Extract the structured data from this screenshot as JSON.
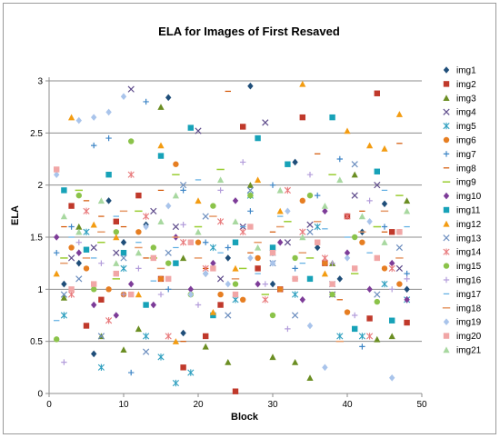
{
  "chart_data": {
    "type": "scatter",
    "title": "ELA for Images of First Resaved",
    "xlabel": "Block",
    "ylabel": "ELA",
    "xlim": [
      0,
      50
    ],
    "ylim": [
      0,
      3
    ],
    "xticks": [
      0,
      10,
      20,
      30,
      40,
      50
    ],
    "yticks": [
      0,
      0.5,
      1,
      1.5,
      2,
      2.5,
      3
    ],
    "ytick_labels": [
      "0",
      "0.5",
      "1",
      "1.5",
      "2",
      "2.5",
      "3"
    ],
    "grid": "horizontal",
    "legend_position": "right",
    "series": [
      {
        "name": "img1",
        "color": "#1F4E79",
        "marker": "diamond",
        "x": [
          2,
          4,
          6,
          8,
          10,
          13,
          16,
          18,
          21,
          24,
          27,
          30,
          33,
          36,
          39,
          42,
          45,
          48
        ],
        "y": [
          1.05,
          1.25,
          0.38,
          1.85,
          1.45,
          1.62,
          2.84,
          0.58,
          1.15,
          1.3,
          2.95,
          1.05,
          2.22,
          1.4,
          1.1,
          1.55,
          1.82,
          1.0
        ]
      },
      {
        "name": "img2",
        "color": "#C0392B",
        "marker": "square",
        "x": [
          3,
          5,
          7,
          9,
          12,
          15,
          18,
          21,
          23,
          25,
          26,
          28,
          31,
          34,
          37,
          40,
          43,
          44,
          46,
          48
        ],
        "y": [
          1.8,
          0.65,
          0.9,
          1.65,
          1.9,
          1.1,
          0.25,
          0.55,
          0.85,
          0.02,
          2.56,
          1.2,
          1.0,
          2.65,
          1.25,
          1.7,
          0.72,
          2.88,
          1.55,
          0.68
        ]
      },
      {
        "name": "img3",
        "color": "#6B8E23",
        "marker": "triangle",
        "x": [
          2,
          4,
          7,
          10,
          12,
          15,
          18,
          21,
          24,
          27,
          30,
          33,
          35,
          38,
          41,
          44,
          46,
          48
        ],
        "y": [
          0.92,
          1.6,
          0.55,
          0.42,
          0.62,
          2.75,
          1.3,
          0.45,
          0.3,
          2.0,
          0.35,
          0.3,
          0.15,
          1.25,
          2.1,
          0.52,
          0.55,
          1.85
        ]
      },
      {
        "name": "img4",
        "color": "#5E4B8B",
        "marker": "x",
        "x": [
          3,
          6,
          9,
          11,
          14,
          17,
          20,
          23,
          26,
          29,
          32,
          35,
          38,
          41,
          44,
          47
        ],
        "y": [
          1.3,
          1.4,
          1.35,
          2.92,
          1.75,
          1.6,
          2.52,
          1.1,
          1.6,
          2.6,
          1.45,
          1.62,
          0.95,
          1.9,
          2.0,
          1.2
        ]
      },
      {
        "name": "img5",
        "color": "#2E9FBF",
        "marker": "star",
        "x": [
          2,
          5,
          7,
          10,
          13,
          15,
          17,
          19,
          22,
          25,
          27,
          30,
          33,
          36,
          39,
          42,
          45,
          48
        ],
        "y": [
          0.75,
          1.55,
          0.25,
          1.2,
          0.55,
          0.35,
          0.1,
          0.2,
          1.4,
          0.9,
          1.9,
          1.35,
          0.95,
          1.6,
          0.55,
          0.55,
          1.05,
          0.9
        ]
      },
      {
        "name": "img6",
        "color": "#E67E22",
        "marker": "circle",
        "x": [
          3,
          5,
          8,
          10,
          12,
          15,
          17,
          20,
          23,
          26,
          28,
          31,
          34,
          37,
          40,
          42,
          45,
          47
        ],
        "y": [
          1.4,
          1.2,
          1.0,
          0.95,
          1.55,
          1.1,
          2.2,
          1.45,
          0.95,
          0.9,
          1.3,
          1.0,
          1.85,
          1.25,
          0.78,
          1.45,
          1.2,
          1.05
        ]
      },
      {
        "name": "img7",
        "color": "#3D85C6",
        "marker": "plus",
        "x": [
          1,
          3,
          6,
          8,
          11,
          13,
          16,
          18,
          21,
          24,
          27,
          30,
          33,
          36,
          39,
          42,
          45,
          48
        ],
        "y": [
          1.35,
          1.6,
          2.38,
          2.45,
          0.2,
          2.8,
          1.0,
          1.95,
          1.45,
          1.4,
          1.75,
          2.0,
          1.2,
          1.9,
          2.25,
          0.45,
          1.6,
          1.15
        ]
      },
      {
        "name": "img8",
        "color": "#D35400",
        "marker": "dash",
        "x": [
          2,
          5,
          7,
          10,
          13,
          15,
          18,
          21,
          24,
          27,
          30,
          33,
          36,
          39,
          42,
          45,
          47
        ],
        "y": [
          1.6,
          1.85,
          1.7,
          1.6,
          1.3,
          1.95,
          0.5,
          1.2,
          2.9,
          1.35,
          1.55,
          1.1,
          2.3,
          0.9,
          1.75,
          1.55,
          2.4
        ]
      },
      {
        "name": "img9",
        "color": "#9ACD32",
        "marker": "line",
        "x": [
          2,
          4,
          7,
          9,
          12,
          14,
          17,
          20,
          23,
          26,
          29,
          32,
          35,
          38,
          41,
          44,
          47
        ],
        "y": [
          1.3,
          1.95,
          1.45,
          1.1,
          1.75,
          1.3,
          2.1,
          1.6,
          2.15,
          1.2,
          0.95,
          1.65,
          1.3,
          2.1,
          1.15,
          1.6,
          1.9
        ]
      },
      {
        "name": "img10",
        "color": "#7D3C98",
        "marker": "diamond",
        "x": [
          1,
          4,
          6,
          9,
          11,
          14,
          17,
          19,
          22,
          25,
          28,
          31,
          34,
          37,
          40,
          43,
          46,
          48
        ],
        "y": [
          1.5,
          1.35,
          0.85,
          0.75,
          1.05,
          0.85,
          1.5,
          1.0,
          1.25,
          1.85,
          1.05,
          1.45,
          0.9,
          1.75,
          1.35,
          1.0,
          1.25,
          0.9
        ]
      },
      {
        "name": "img11",
        "color": "#17A2B8",
        "marker": "square",
        "x": [
          2,
          5,
          8,
          10,
          13,
          15,
          17,
          19,
          22,
          25,
          28,
          30,
          32,
          35,
          38,
          41,
          44,
          46
        ],
        "y": [
          1.95,
          1.38,
          2.1,
          1.35,
          0.85,
          2.28,
          1.25,
          2.55,
          0.75,
          1.45,
          2.45,
          1.4,
          2.2,
          1.1,
          2.65,
          0.62,
          2.13,
          0.7
        ]
      },
      {
        "name": "img12",
        "color": "#F39C12",
        "marker": "triangle",
        "x": [
          1,
          3,
          6,
          9,
          12,
          15,
          17,
          20,
          22,
          25,
          28,
          31,
          34,
          37,
          40,
          43,
          45,
          47
        ],
        "y": [
          1.15,
          2.65,
          1.62,
          1.5,
          0.95,
          2.38,
          0.5,
          1.85,
          0.78,
          1.2,
          2.05,
          1.75,
          2.97,
          1.15,
          2.52,
          2.38,
          2.35,
          2.68
        ]
      },
      {
        "name": "img13",
        "color": "#6C8EBF",
        "marker": "x",
        "x": [
          2,
          4,
          7,
          10,
          13,
          16,
          18,
          21,
          24,
          27,
          30,
          33,
          35,
          38,
          41,
          44,
          47
        ],
        "y": [
          0.95,
          1.1,
          0.55,
          1.3,
          0.4,
          1.35,
          2.0,
          1.7,
          0.75,
          1.95,
          1.25,
          0.75,
          1.55,
          1.05,
          2.2,
          0.95,
          1.4
        ]
      },
      {
        "name": "img14",
        "color": "#E8797B",
        "marker": "star",
        "x": [
          3,
          5,
          8,
          11,
          13,
          16,
          18,
          21,
          23,
          26,
          29,
          32,
          34,
          37,
          40,
          43,
          46
        ],
        "y": [
          0.95,
          1.75,
          0.7,
          2.1,
          1.7,
          0.55,
          1.45,
          1.2,
          1.65,
          1.55,
          0.9,
          1.95,
          1.55,
          1.3,
          1.7,
          0.55,
          1.2
        ]
      },
      {
        "name": "img15",
        "color": "#8BC34A",
        "marker": "circle",
        "x": [
          1,
          4,
          6,
          9,
          11,
          14,
          16,
          19,
          22,
          25,
          27,
          30,
          33,
          35,
          38,
          41,
          44,
          47
        ],
        "y": [
          0.52,
          1.9,
          1.0,
          1.55,
          2.42,
          1.4,
          1.25,
          0.95,
          1.8,
          1.05,
          1.9,
          0.75,
          1.3,
          1.9,
          0.95,
          1.5,
          0.88,
          1.55
        ]
      },
      {
        "name": "img16",
        "color": "#B39DDB",
        "marker": "plus",
        "x": [
          2,
          4,
          7,
          10,
          12,
          15,
          18,
          20,
          23,
          26,
          29,
          32,
          35,
          38,
          41,
          43,
          46,
          48
        ],
        "y": [
          0.3,
          1.45,
          1.25,
          0.95,
          1.2,
          0.95,
          1.62,
          0.85,
          1.95,
          2.22,
          1.05,
          0.62,
          2.1,
          1.25,
          0.75,
          1.85,
          1.0,
          1.1
        ]
      },
      {
        "name": "img17",
        "color": "#5DADE2",
        "marker": "dash",
        "x": [
          1,
          3,
          6,
          9,
          12,
          14,
          17,
          20,
          23,
          26,
          28,
          31,
          34,
          37,
          40,
          43,
          45,
          48
        ],
        "y": [
          0.7,
          1.5,
          1.3,
          1.7,
          1.45,
          1.08,
          1.4,
          2.05,
          1.35,
          1.6,
          1.15,
          1.7,
          1.25,
          1.58,
          1.5,
          1.35,
          1.95,
          1.6
        ]
      },
      {
        "name": "img18",
        "color": "#E59866",
        "marker": "line",
        "x": [
          2,
          5,
          7,
          10,
          12,
          15,
          17,
          20,
          22,
          25,
          28,
          31,
          34,
          36,
          39,
          42,
          45,
          47
        ],
        "y": [
          1.25,
          1.3,
          1.55,
          1.75,
          1.4,
          1.2,
          1.5,
          1.3,
          1.7,
          1.1,
          1.45,
          1.6,
          1.35,
          1.65,
          0.5,
          1.55,
          1.75,
          1.3
        ]
      },
      {
        "name": "img19",
        "color": "#A9C4EB",
        "marker": "diamond",
        "x": [
          1,
          4,
          6,
          8,
          10,
          13,
          16,
          19,
          21,
          24,
          27,
          30,
          32,
          35,
          37,
          40,
          43,
          46
        ],
        "y": [
          2.1,
          2.62,
          2.65,
          2.7,
          2.85,
          1.6,
          1.8,
          0.95,
          1.15,
          1.05,
          1.3,
          1.25,
          1.75,
          0.65,
          0.25,
          1.3,
          1.65,
          0.15
        ]
      },
      {
        "name": "img20",
        "color": "#F1A6A6",
        "marker": "square",
        "x": [
          1,
          3,
          6,
          9,
          11,
          14,
          16,
          19,
          22,
          25,
          27,
          30,
          33,
          36,
          38,
          41,
          44,
          47
        ],
        "y": [
          2.15,
          1.0,
          1.05,
          1.15,
          0.95,
          1.3,
          1.1,
          1.45,
          1.2,
          0.95,
          1.6,
          1.35,
          1.1,
          1.45,
          1.05,
          1.2,
          1.3,
          1.55
        ]
      },
      {
        "name": "img21",
        "color": "#A8D8A0",
        "marker": "triangle",
        "x": [
          2,
          4,
          7,
          9,
          12,
          15,
          17,
          20,
          23,
          25,
          28,
          31,
          34,
          37,
          39,
          42,
          45,
          48
        ],
        "y": [
          1.7,
          1.55,
          1.85,
          1.25,
          1.35,
          1.65,
          1.9,
          1.55,
          2.05,
          1.65,
          1.4,
          1.95,
          1.5,
          1.8,
          2.05,
          1.7,
          1.45,
          1.75
        ]
      }
    ]
  }
}
